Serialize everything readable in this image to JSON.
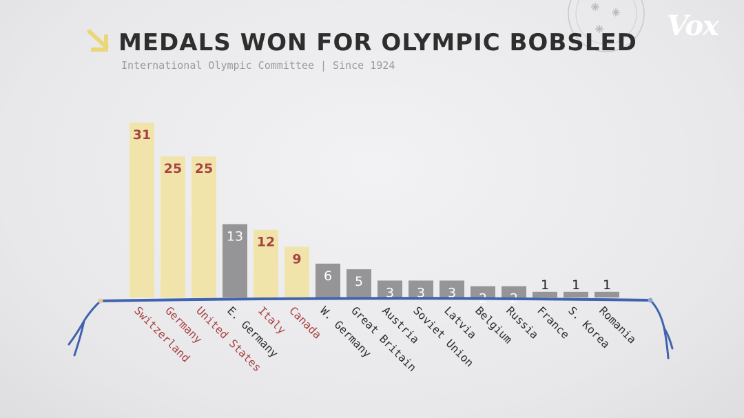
{
  "header": {
    "title": "MEDALS WON FOR OLYMPIC BOBSLED",
    "subtitle": "International Olympic Committee | Since 1924",
    "logo": "Vox"
  },
  "colors": {
    "highlight_bar": "#f1e4ab",
    "highlight_text": "#a94342",
    "plain_bar": "#959597",
    "plain_value": "#ffffff",
    "plain_label": "#2e2e2e",
    "baseline": "#3f63ad",
    "arrow": "#e9d77a"
  },
  "chart_data": {
    "type": "bar",
    "title": "MEDALS WON FOR OLYMPIC BOBSLED",
    "subtitle": "International Olympic Committee | Since 1924",
    "categories": [
      "Switzerland",
      "Germany",
      "United States",
      "E. Germany",
      "Italy",
      "Canada",
      "W. Germany",
      "Great Britain",
      "Austria",
      "Soviet Union",
      "Latvia",
      "Belgium",
      "Russia",
      "France",
      "S. Korea",
      "Romania"
    ],
    "values": [
      31,
      25,
      25,
      13,
      12,
      9,
      6,
      5,
      3,
      3,
      3,
      2,
      2,
      1,
      1,
      1
    ],
    "highlighted": [
      true,
      true,
      true,
      false,
      true,
      true,
      false,
      false,
      false,
      false,
      false,
      false,
      false,
      false,
      false,
      false
    ],
    "data_labels": [
      "31",
      "25",
      "25",
      "13",
      "12",
      "9",
      "6",
      "5",
      "3",
      "3",
      "3",
      "2",
      "2",
      "1",
      "1",
      "1"
    ],
    "ylim": [
      0,
      31
    ],
    "grid": false,
    "xlabel": "",
    "ylabel": ""
  }
}
